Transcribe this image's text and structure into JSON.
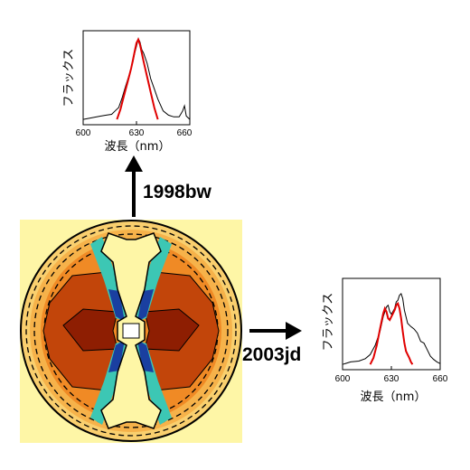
{
  "labels": {
    "top_event": "1998bw",
    "right_event": "2003jd"
  },
  "chart_data": [
    {
      "type": "line",
      "event": "1998bw",
      "xlabel": "波長（nm）",
      "ylabel": "フラックス",
      "xlim": [
        600,
        660
      ],
      "x_ticks": [
        "600",
        "630",
        "660"
      ],
      "series": [
        {
          "color": "#000000",
          "x": [
            600,
            605,
            610,
            613,
            616,
            618,
            620,
            622,
            624,
            626,
            628,
            629,
            630,
            631,
            632,
            633,
            634,
            636,
            638,
            640,
            642,
            645,
            648,
            651,
            654,
            656,
            657,
            658,
            660
          ],
          "y": [
            0.02,
            0.04,
            0.06,
            0.07,
            0.08,
            0.12,
            0.16,
            0.28,
            0.42,
            0.55,
            0.7,
            0.8,
            0.88,
            0.97,
            0.93,
            0.84,
            0.8,
            0.68,
            0.5,
            0.38,
            0.26,
            0.12,
            0.07,
            0.05,
            0.05,
            0.12,
            0.18,
            0.06,
            0.02
          ]
        },
        {
          "color": "#e00000",
          "x": [
            619,
            621,
            623,
            625,
            627,
            628,
            629,
            630,
            631,
            632,
            633,
            634,
            636,
            638,
            640,
            642
          ],
          "y": [
            0.02,
            0.14,
            0.3,
            0.46,
            0.62,
            0.72,
            0.82,
            0.92,
            0.96,
            0.9,
            0.8,
            0.7,
            0.52,
            0.34,
            0.16,
            0.02
          ]
        }
      ]
    },
    {
      "type": "line",
      "event": "2003jd",
      "xlabel": "波長（nm）",
      "ylabel": "フラックス",
      "xlim": [
        600,
        660
      ],
      "x_ticks": [
        "600",
        "630",
        "660"
      ],
      "series": [
        {
          "color": "#000000",
          "x": [
            600,
            605,
            610,
            614,
            617,
            620,
            623,
            625,
            627,
            628,
            629,
            630,
            632,
            633,
            634,
            635,
            636,
            637,
            638,
            640,
            642,
            644,
            646,
            648,
            650,
            652,
            654,
            656,
            658,
            660
          ],
          "y": [
            0.02,
            0.05,
            0.06,
            0.09,
            0.14,
            0.25,
            0.42,
            0.6,
            0.72,
            0.74,
            0.66,
            0.63,
            0.7,
            0.78,
            0.8,
            0.86,
            0.88,
            0.82,
            0.68,
            0.52,
            0.48,
            0.45,
            0.4,
            0.3,
            0.28,
            0.2,
            0.12,
            0.08,
            0.05,
            0.03
          ]
        },
        {
          "color": "#e00000",
          "x": [
            617,
            619,
            621,
            623,
            625,
            626,
            627,
            628,
            629,
            630,
            631,
            632,
            633,
            634,
            635,
            636,
            637,
            638,
            639,
            640,
            641,
            642,
            643
          ],
          "y": [
            0.02,
            0.1,
            0.25,
            0.45,
            0.64,
            0.7,
            0.66,
            0.58,
            0.56,
            0.6,
            0.64,
            0.68,
            0.74,
            0.76,
            0.7,
            0.58,
            0.42,
            0.28,
            0.18,
            0.14,
            0.1,
            0.05,
            0.02
          ]
        }
      ]
    }
  ]
}
